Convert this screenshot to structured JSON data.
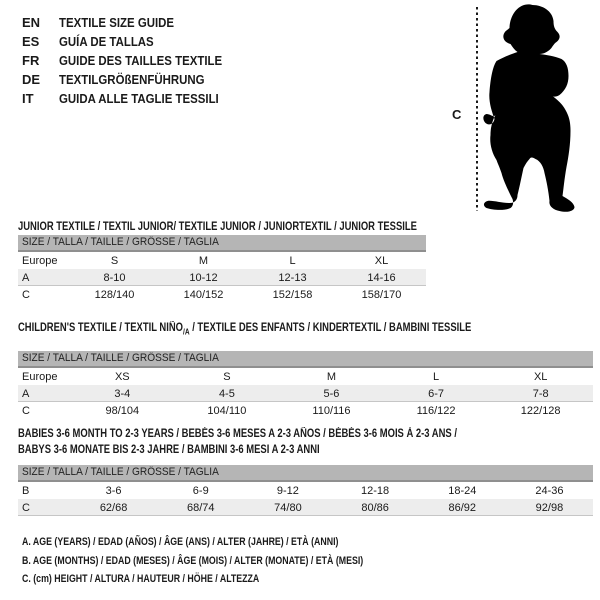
{
  "languages": [
    {
      "code": "EN",
      "label": "TEXTILE SIZE GUIDE"
    },
    {
      "code": "ES",
      "label": "GUÍA DE TALLAS"
    },
    {
      "code": "FR",
      "label": "GUIDE DES TAILLES TEXTILE"
    },
    {
      "code": "DE",
      "label": "TEXTILGRÖßENFÜHRUNG"
    },
    {
      "code": "IT",
      "label": "GUIDA ALLE TAGLIE TESSILI"
    }
  ],
  "figure": {
    "icon": "toddler-silhouette",
    "measure_label": "C"
  },
  "sections": [
    {
      "title_lines": [
        [
          {
            "text": "JUNIOR TEXTILE / TEXTIL JUNIOR/ TEXTILE JUNIOR / JUNIORTEXTIL / JUNIOR TESSILE",
            "sub": false
          }
        ]
      ],
      "size_header": "SIZE / TALLA / TAILLE / GRÖSSE / TAGLIA",
      "rows": [
        {
          "label": "Europe",
          "values": [
            "S",
            "M",
            "L",
            "XL"
          ],
          "shaded": false
        },
        {
          "label": "A",
          "values": [
            "8-10",
            "10-12",
            "12-13",
            "14-16"
          ],
          "shaded": true
        },
        {
          "label": "C",
          "values": [
            "128/140",
            "140/152",
            "152/158",
            "158/170"
          ],
          "shaded": false
        }
      ]
    },
    {
      "title_lines": [
        [
          {
            "text": "CHILDREN'S TEXTILE / TEXTIL NIÑO",
            "sub": false
          },
          {
            "text": "/A",
            "sub": true
          },
          {
            "text": " / TEXTILE DES ENFANTS / KINDERTEXTIL / BAMBINI TESSILE",
            "sub": false
          }
        ]
      ],
      "size_header": "SIZE / TALLA / TAILLE / GRÖSSE / TAGLIA",
      "rows": [
        {
          "label": "Europe",
          "values": [
            "XS",
            "S",
            "M",
            "L",
            "XL"
          ],
          "shaded": false
        },
        {
          "label": "A",
          "values": [
            "3-4",
            "4-5",
            "5-6",
            "6-7",
            "7-8"
          ],
          "shaded": true
        },
        {
          "label": "C",
          "values": [
            "98/104",
            "104/110",
            "110/116",
            "116/122",
            "122/128"
          ],
          "shaded": false
        }
      ]
    },
    {
      "title_lines": [
        [
          {
            "text": "BABIES 3-6 MONTH TO 2-3 YEARS / BEBÉS 3-6 MESES A 2-3 AÑOS / BÉBÉS 3-6 MOIS À 2-3 ANS /",
            "sub": false
          }
        ],
        [
          {
            "text": "BABYS 3-6 MONATE BIS 2-3 JAHRE / BAMBINI 3-6 MESI A 2-3 ANNI",
            "sub": false
          }
        ]
      ],
      "size_header": "SIZE / TALLA / TAILLE / GRÖSSE / TAGLIA",
      "rows": [
        {
          "label": "B",
          "values": [
            "3-6",
            "6-9",
            "9-12",
            "12-18",
            "18-24",
            "24-36"
          ],
          "shaded": false
        },
        {
          "label": "C",
          "values": [
            "62/68",
            "68/74",
            "74/80",
            "80/86",
            "86/92",
            "92/98"
          ],
          "shaded": true
        }
      ]
    }
  ],
  "legend": [
    "A. AGE (YEARS) / EDAD (AÑOS) / ÂGE (ANS) / ALTER (JAHRE) / ETÀ (ANNI)",
    "B. AGE (MONTHS) / EDAD (MESES) / ÂGE (MOIS) / ALTER (MONATE) / ETÀ (MESI)",
    "C. (cm) HEIGHT / ALTURA / HAUTEUR / HÖHE / ALTEZZA"
  ],
  "colors": {
    "size_header_bar": "#b5b5b5",
    "size_header_border": "#8f8f8f",
    "shaded_row": "#ededed",
    "text": "#1a1a1a",
    "silhouette": "#000000"
  }
}
